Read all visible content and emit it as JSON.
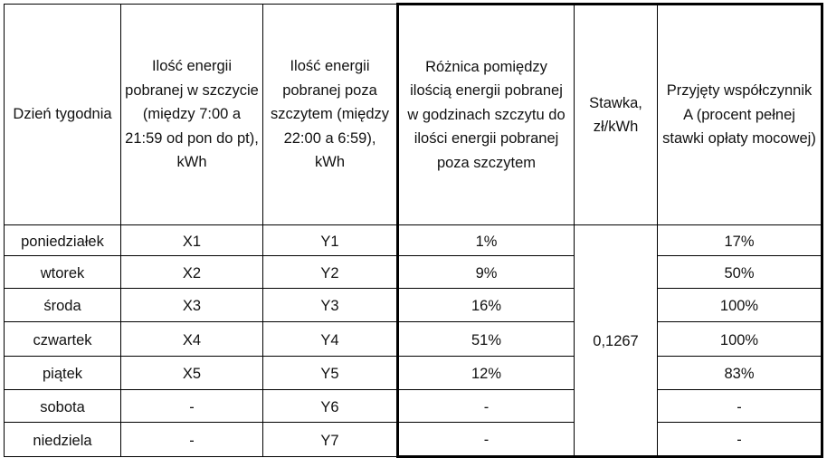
{
  "headers": [
    "Dzień tygodnia",
    "Ilość energii pobranej w szczycie (między 7:00 a 21:59 od pon do pt), kWh",
    "Ilość energii pobranej poza szczytem (między 22:00 a 6:59), kWh",
    "Różnica pomiędzy ilością energii pobranej w godzinach szczytu do ilości energii pobranej poza szczytem",
    "Stawka, zł/kWh",
    "Przyjęty współczynnik A (procent pełnej stawki opłaty mocowej)"
  ],
  "rate": "0,1267",
  "rows": [
    {
      "day": "poniedziałek",
      "peak": "X1",
      "offpeak": "Y1",
      "diff": "1%",
      "coef": "17%"
    },
    {
      "day": "wtorek",
      "peak": "X2",
      "offpeak": "Y2",
      "diff": "9%",
      "coef": "50%"
    },
    {
      "day": "środa",
      "peak": "X3",
      "offpeak": "Y3",
      "diff": "16%",
      "coef": "100%"
    },
    {
      "day": "czwartek",
      "peak": "X4",
      "offpeak": "Y4",
      "diff": "51%",
      "coef": "100%"
    },
    {
      "day": "piątek",
      "peak": "X5",
      "offpeak": "Y5",
      "diff": "12%",
      "coef": "83%"
    },
    {
      "day": "sobota",
      "peak": "-",
      "offpeak": "Y6",
      "diff": "-",
      "coef": "-"
    },
    {
      "day": "niedziela",
      "peak": "-",
      "offpeak": "Y7",
      "diff": "-",
      "coef": "-"
    }
  ]
}
